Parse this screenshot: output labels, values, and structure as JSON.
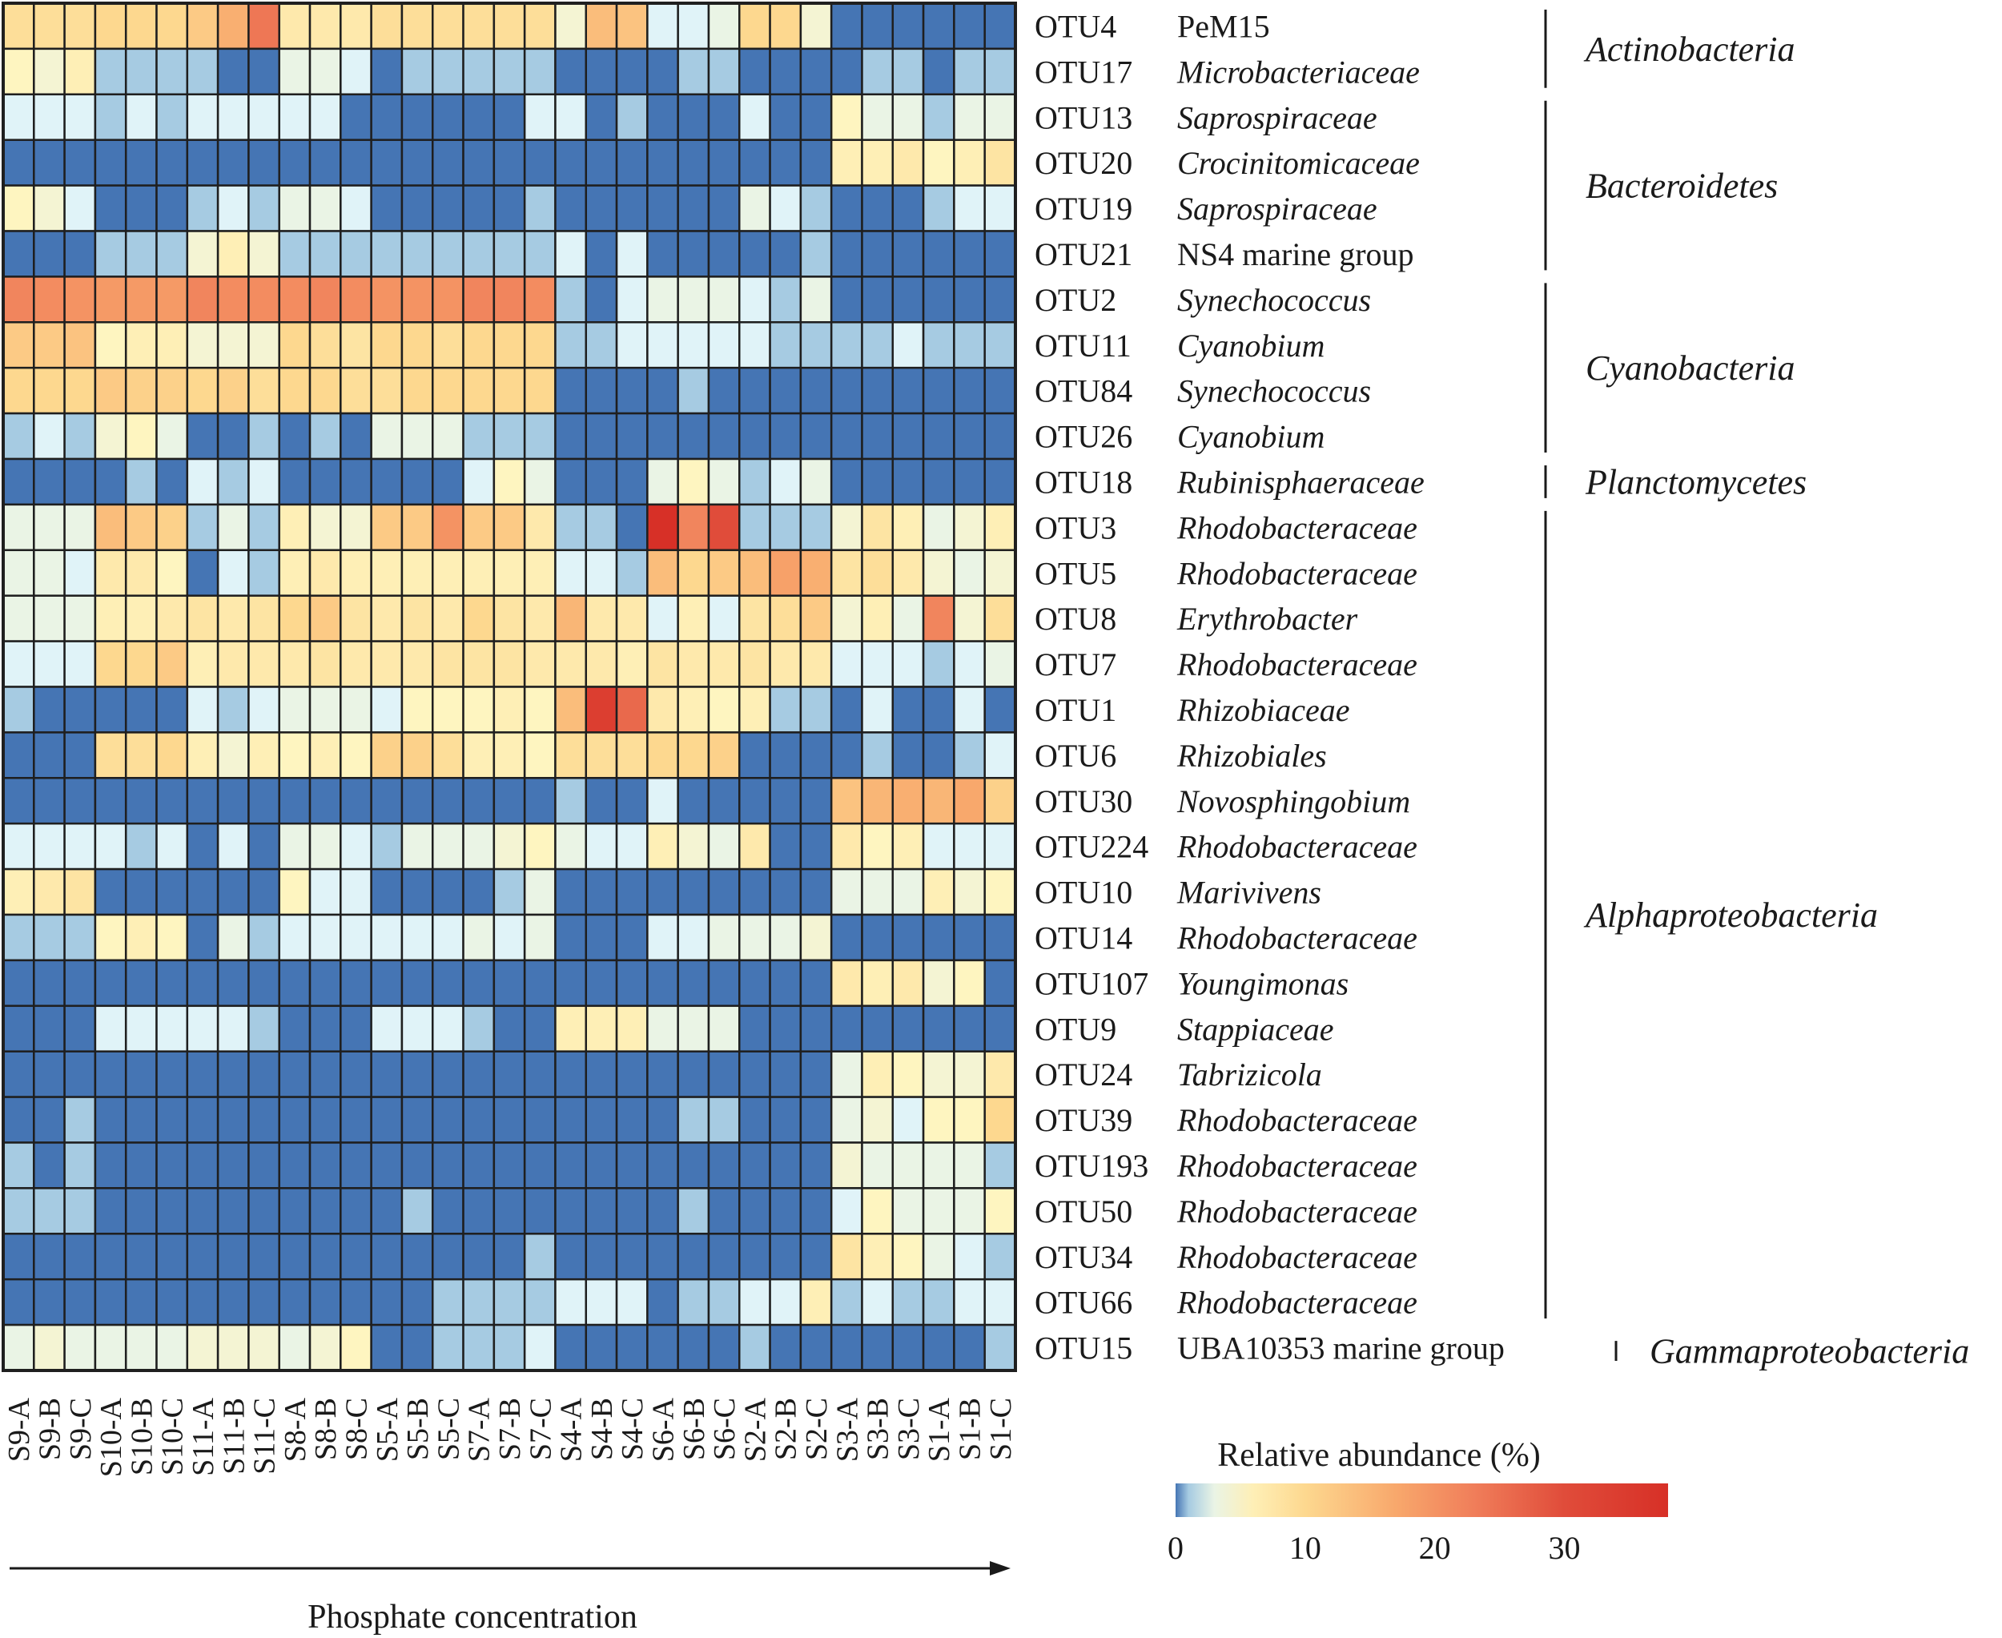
{
  "chart_data": {
    "type": "heatmap",
    "title": "",
    "xlabel": "Phosphate concentration",
    "colorbar": {
      "title": "Relative abundance (%)",
      "ticks": [
        0,
        10,
        20,
        30
      ],
      "range": [
        0,
        38
      ],
      "colors": [
        "#4575b4",
        "#a6cbe2",
        "#e0f3f8",
        "#fef5c0",
        "#fdd88f",
        "#f8a86c",
        "#f07e5a",
        "#d73027"
      ]
    },
    "columns": [
      "S9-A",
      "S9-B",
      "S9-C",
      "S10-A",
      "S10-B",
      "S10-C",
      "S11-A",
      "S11-B",
      "S11-C",
      "S8-A",
      "S8-B",
      "S8-C",
      "S5-A",
      "S5-B",
      "S5-C",
      "S7-A",
      "S7-B",
      "S7-C",
      "S4-A",
      "S4-B",
      "S4-C",
      "S6-A",
      "S6-B",
      "S6-C",
      "S2-A",
      "S2-B",
      "S2-C",
      "S3-A",
      "S3-B",
      "S3-C",
      "S1-A",
      "S1-B",
      "S1-C"
    ],
    "rows": [
      {
        "otu": "OTU4",
        "taxon": "PeM15",
        "italic": false,
        "values": [
          9,
          9,
          9,
          10,
          10,
          10,
          12,
          16,
          24,
          7,
          7,
          7,
          9,
          9,
          9,
          9,
          9,
          9,
          4,
          14,
          13,
          2,
          2,
          3,
          10,
          10,
          4,
          0,
          0,
          0,
          0,
          0,
          0
        ]
      },
      {
        "otu": "OTU17",
        "taxon": "Microbacteriaceae",
        "italic": true,
        "values": [
          5,
          4,
          6,
          1,
          1,
          1,
          1,
          0,
          0,
          3,
          3,
          2,
          0,
          1,
          1,
          1,
          1,
          1,
          0,
          0,
          0,
          0,
          1,
          1,
          0,
          0,
          0,
          0,
          1,
          1,
          0,
          1,
          1
        ]
      },
      {
        "otu": "OTU13",
        "taxon": "Saprospiraceae",
        "italic": true,
        "values": [
          2,
          2,
          2,
          1,
          2,
          1,
          2,
          2,
          2,
          2,
          2,
          0,
          0,
          0,
          0,
          0,
          0,
          2,
          2,
          0,
          1,
          0,
          0,
          0,
          2,
          0,
          0,
          5,
          3,
          3,
          1,
          3,
          3
        ]
      },
      {
        "otu": "OTU20",
        "taxon": "Crocinitomicaceae",
        "italic": true,
        "values": [
          0,
          0,
          0,
          0,
          0,
          0,
          0,
          0,
          0,
          0,
          0,
          0,
          0,
          0,
          0,
          0,
          0,
          0,
          0,
          0,
          0,
          0,
          0,
          0,
          0,
          0,
          0,
          6,
          6,
          7,
          5,
          6,
          8
        ]
      },
      {
        "otu": "OTU19",
        "taxon": "Saprospiraceae",
        "italic": true,
        "values": [
          5,
          4,
          2,
          0,
          0,
          0,
          1,
          2,
          1,
          3,
          3,
          2,
          0,
          0,
          0,
          0,
          0,
          1,
          0,
          0,
          0,
          0,
          0,
          0,
          3,
          2,
          1,
          0,
          0,
          0,
          1,
          2,
          2
        ]
      },
      {
        "otu": "OTU21",
        "taxon": "NS4 marine group",
        "italic": false,
        "values": [
          0,
          0,
          0,
          1,
          1,
          1,
          4,
          6,
          4,
          1,
          1,
          1,
          1,
          1,
          1,
          1,
          1,
          1,
          2,
          0,
          2,
          0,
          0,
          0,
          0,
          0,
          1,
          0,
          0,
          0,
          0,
          0,
          0
        ]
      },
      {
        "otu": "OTU2",
        "taxon": "Synechococcus",
        "italic": true,
        "values": [
          22,
          21,
          20,
          19,
          19,
          19,
          22,
          21,
          21,
          21,
          22,
          21,
          20,
          20,
          20,
          22,
          22,
          21,
          1,
          0,
          2,
          3,
          3,
          3,
          2,
          1,
          3,
          0,
          0,
          0,
          0,
          0,
          0
        ]
      },
      {
        "otu": "OTU11",
        "taxon": "Cyanobium",
        "italic": true,
        "values": [
          12,
          12,
          13,
          5,
          6,
          6,
          4,
          4,
          4,
          10,
          9,
          8,
          10,
          10,
          9,
          10,
          10,
          10,
          1,
          1,
          2,
          2,
          2,
          2,
          2,
          1,
          1,
          1,
          1,
          2,
          1,
          1,
          1
        ]
      },
      {
        "otu": "OTU84",
        "taxon": "Synechococcus",
        "italic": true,
        "values": [
          10,
          10,
          10,
          12,
          11,
          11,
          10,
          11,
          9,
          10,
          10,
          9,
          9,
          10,
          10,
          10,
          10,
          10,
          0,
          0,
          0,
          0,
          1,
          0,
          0,
          0,
          0,
          0,
          0,
          0,
          0,
          0,
          0
        ]
      },
      {
        "otu": "OTU26",
        "taxon": "Cyanobium",
        "italic": true,
        "values": [
          1,
          2,
          1,
          4,
          5,
          3,
          0,
          0,
          1,
          0,
          1,
          0,
          3,
          3,
          3,
          1,
          1,
          1,
          0,
          0,
          0,
          0,
          0,
          0,
          0,
          0,
          0,
          0,
          0,
          0,
          0,
          0,
          0
        ]
      },
      {
        "otu": "OTU18",
        "taxon": "Rubinisphaeraceae",
        "italic": true,
        "values": [
          0,
          0,
          0,
          0,
          1,
          0,
          2,
          1,
          2,
          0,
          0,
          0,
          0,
          0,
          0,
          2,
          5,
          3,
          0,
          0,
          0,
          3,
          5,
          3,
          1,
          2,
          3,
          0,
          0,
          0,
          0,
          0,
          0
        ]
      },
      {
        "otu": "OTU3",
        "taxon": "Rhodobacteraceae",
        "italic": true,
        "values": [
          3,
          3,
          3,
          14,
          12,
          11,
          1,
          3,
          1,
          6,
          4,
          4,
          12,
          12,
          20,
          12,
          12,
          7,
          1,
          1,
          0,
          34,
          22,
          30,
          1,
          1,
          1,
          4,
          8,
          6,
          3,
          4,
          6
        ]
      },
      {
        "otu": "OTU5",
        "taxon": "Rhodobacteraceae",
        "italic": true,
        "values": [
          3,
          3,
          2,
          7,
          7,
          5,
          0,
          2,
          1,
          6,
          7,
          6,
          6,
          6,
          6,
          6,
          6,
          6,
          2,
          2,
          1,
          14,
          10,
          12,
          14,
          18,
          16,
          8,
          9,
          7,
          4,
          3,
          4
        ]
      },
      {
        "otu": "OTU8",
        "taxon": "Erythrobacter",
        "italic": true,
        "values": [
          3,
          3,
          3,
          6,
          6,
          7,
          8,
          7,
          8,
          10,
          12,
          8,
          7,
          8,
          7,
          10,
          8,
          7,
          15,
          7,
          7,
          2,
          6,
          2,
          8,
          9,
          12,
          4,
          6,
          3,
          22,
          4,
          9
        ]
      },
      {
        "otu": "OTU7",
        "taxon": "Rhodobacteraceae",
        "italic": true,
        "values": [
          2,
          2,
          2,
          10,
          10,
          12,
          6,
          7,
          7,
          7,
          8,
          7,
          7,
          7,
          8,
          8,
          8,
          7,
          7,
          7,
          6,
          8,
          7,
          7,
          8,
          7,
          7,
          2,
          2,
          2,
          1,
          2,
          3
        ]
      },
      {
        "otu": "OTU1",
        "taxon": "Rhizobiaceae",
        "italic": true,
        "values": [
          1,
          0,
          0,
          0,
          0,
          0,
          2,
          1,
          2,
          3,
          3,
          3,
          2,
          5,
          5,
          5,
          6,
          5,
          14,
          32,
          26,
          7,
          6,
          5,
          6,
          1,
          1,
          0,
          2,
          0,
          0,
          2,
          0
        ]
      },
      {
        "otu": "OTU6",
        "taxon": "Rhizobiales",
        "italic": true,
        "values": [
          0,
          0,
          0,
          9,
          9,
          10,
          6,
          4,
          6,
          5,
          6,
          5,
          11,
          11,
          9,
          6,
          6,
          5,
          9,
          9,
          9,
          10,
          10,
          11,
          0,
          0,
          0,
          0,
          1,
          0,
          0,
          1,
          2
        ]
      },
      {
        "otu": "OTU30",
        "taxon": "Novosphingobium",
        "italic": true,
        "values": [
          0,
          0,
          0,
          0,
          0,
          0,
          0,
          0,
          0,
          0,
          0,
          0,
          0,
          0,
          0,
          0,
          0,
          0,
          1,
          0,
          0,
          2,
          0,
          0,
          0,
          0,
          0,
          13,
          15,
          16,
          15,
          17,
          11
        ]
      },
      {
        "otu": "OTU224",
        "taxon": "Rhodobacteraceae",
        "italic": true,
        "values": [
          2,
          2,
          2,
          2,
          1,
          2,
          0,
          2,
          0,
          3,
          3,
          2,
          1,
          3,
          3,
          3,
          4,
          5,
          3,
          2,
          2,
          6,
          4,
          3,
          7,
          0,
          0,
          7,
          5,
          6,
          2,
          2,
          2
        ]
      },
      {
        "otu": "OTU10",
        "taxon": "Marivivens",
        "italic": true,
        "values": [
          6,
          7,
          8,
          0,
          0,
          0,
          0,
          0,
          0,
          5,
          2,
          2,
          0,
          0,
          0,
          0,
          1,
          3,
          0,
          0,
          0,
          0,
          0,
          0,
          0,
          0,
          0,
          3,
          3,
          3,
          6,
          4,
          5
        ]
      },
      {
        "otu": "OTU14",
        "taxon": "Rhodobacteraceae",
        "italic": true,
        "values": [
          1,
          1,
          1,
          5,
          6,
          5,
          0,
          3,
          1,
          2,
          2,
          2,
          2,
          2,
          2,
          3,
          2,
          3,
          0,
          0,
          0,
          2,
          2,
          3,
          3,
          3,
          4,
          0,
          0,
          0,
          0,
          0,
          0
        ]
      },
      {
        "otu": "OTU107",
        "taxon": "Youngimonas",
        "italic": true,
        "values": [
          0,
          0,
          0,
          0,
          0,
          0,
          0,
          0,
          0,
          0,
          0,
          0,
          0,
          0,
          0,
          0,
          0,
          0,
          0,
          0,
          0,
          0,
          0,
          0,
          0,
          0,
          0,
          7,
          6,
          7,
          4,
          5,
          0
        ]
      },
      {
        "otu": "OTU9",
        "taxon": "Stappiaceae",
        "italic": true,
        "values": [
          0,
          0,
          0,
          2,
          2,
          2,
          2,
          2,
          1,
          0,
          0,
          0,
          2,
          2,
          2,
          1,
          0,
          0,
          6,
          6,
          6,
          3,
          3,
          3,
          0,
          0,
          0,
          0,
          0,
          0,
          0,
          0,
          0
        ]
      },
      {
        "otu": "OTU24",
        "taxon": "Tabrizicola",
        "italic": true,
        "values": [
          0,
          0,
          0,
          0,
          0,
          0,
          0,
          0,
          0,
          0,
          0,
          0,
          0,
          0,
          0,
          0,
          0,
          0,
          0,
          0,
          0,
          0,
          0,
          0,
          0,
          0,
          0,
          3,
          6,
          5,
          4,
          4,
          7
        ]
      },
      {
        "otu": "OTU39",
        "taxon": "Rhodobacteraceae",
        "italic": true,
        "values": [
          0,
          0,
          1,
          0,
          0,
          0,
          0,
          0,
          0,
          0,
          0,
          0,
          0,
          0,
          0,
          0,
          0,
          0,
          0,
          0,
          0,
          0,
          1,
          1,
          0,
          0,
          0,
          3,
          4,
          2,
          5,
          5,
          10
        ]
      },
      {
        "otu": "OTU193",
        "taxon": "Rhodobacteraceae",
        "italic": true,
        "values": [
          1,
          0,
          1,
          0,
          0,
          0,
          0,
          0,
          0,
          0,
          0,
          0,
          0,
          0,
          0,
          0,
          0,
          0,
          0,
          0,
          0,
          0,
          0,
          0,
          0,
          0,
          0,
          4,
          3,
          3,
          3,
          3,
          1
        ]
      },
      {
        "otu": "OTU50",
        "taxon": "Rhodobacteraceae",
        "italic": true,
        "values": [
          1,
          1,
          1,
          0,
          0,
          0,
          0,
          0,
          0,
          0,
          0,
          0,
          0,
          1,
          0,
          0,
          0,
          0,
          0,
          0,
          0,
          0,
          1,
          0,
          0,
          0,
          0,
          2,
          5,
          3,
          3,
          3,
          5
        ]
      },
      {
        "otu": "OTU34",
        "taxon": "Rhodobacteraceae",
        "italic": true,
        "values": [
          0,
          0,
          0,
          0,
          0,
          0,
          0,
          0,
          0,
          0,
          0,
          0,
          0,
          0,
          0,
          0,
          0,
          1,
          0,
          0,
          0,
          0,
          0,
          0,
          0,
          0,
          0,
          8,
          6,
          5,
          3,
          2,
          1
        ]
      },
      {
        "otu": "OTU66",
        "taxon": "Rhodobacteraceae",
        "italic": true,
        "values": [
          0,
          0,
          0,
          0,
          0,
          0,
          0,
          0,
          0,
          0,
          0,
          0,
          0,
          0,
          1,
          1,
          1,
          1,
          2,
          2,
          2,
          0,
          1,
          1,
          2,
          2,
          6,
          1,
          2,
          1,
          1,
          2,
          2
        ]
      },
      {
        "otu": "OTU15",
        "taxon": "UBA10353 marine group",
        "italic": false,
        "values": [
          3,
          4,
          3,
          3,
          3,
          3,
          4,
          4,
          4,
          3,
          4,
          5,
          0,
          0,
          1,
          1,
          1,
          2,
          0,
          0,
          0,
          0,
          0,
          0,
          1,
          0,
          0,
          0,
          0,
          0,
          0,
          0,
          1
        ]
      }
    ],
    "groups": [
      {
        "name": "Actinobacteria",
        "start": 0,
        "end": 1
      },
      {
        "name": "Bacteroidetes",
        "start": 2,
        "end": 5
      },
      {
        "name": "Cyanobacteria",
        "start": 6,
        "end": 9
      },
      {
        "name": "Planctomycetes",
        "start": 10,
        "end": 10
      },
      {
        "name": "Alphaproteobacteria",
        "start": 11,
        "end": 28
      },
      {
        "name": "Gammaproteobacteria",
        "start": 29,
        "end": 29
      }
    ]
  }
}
